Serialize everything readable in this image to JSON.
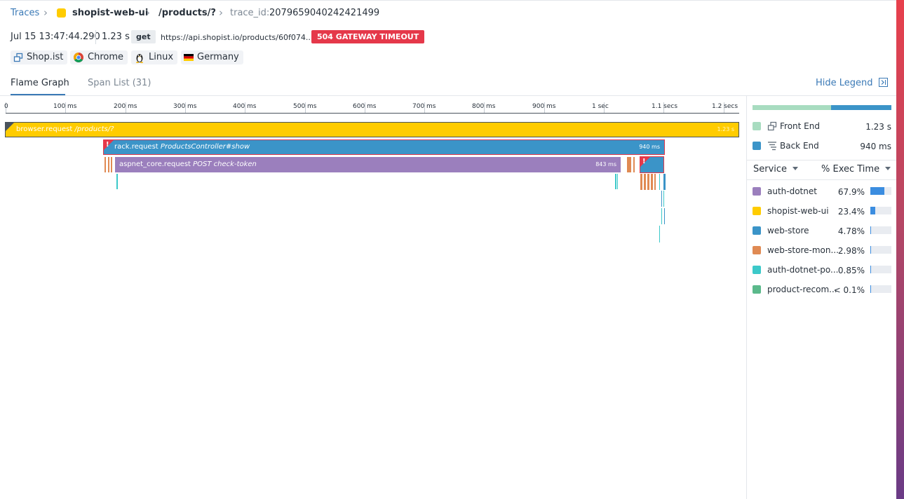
{
  "breadcrumb": {
    "root": "Traces",
    "service": "shopist-web-ui",
    "resource": "/products/?",
    "trace_id_label": "trace_id:",
    "trace_id": "2079659040242421499"
  },
  "meta": {
    "timestamp": "Jul 15 13:47:44.290",
    "duration": "1.23 s",
    "method": "get",
    "url": "https://api.shopist.io/products/60f074...",
    "status": "504 GATEWAY TIMEOUT"
  },
  "tags": [
    {
      "icon": "app-window-icon",
      "label": "Shop.ist"
    },
    {
      "icon": "chrome-icon",
      "label": "Chrome"
    },
    {
      "icon": "linux-icon",
      "label": "Linux"
    },
    {
      "icon": "germany-flag-icon",
      "label": "Germany"
    }
  ],
  "tabs": {
    "flame_graph": "Flame Graph",
    "span_list": "Span List (31)",
    "hide_legend": "Hide Legend"
  },
  "timeline": {
    "ticks": [
      "0",
      "100 ms",
      "200 ms",
      "300 ms",
      "400 ms",
      "500 ms",
      "600 ms",
      "700 ms",
      "800 ms",
      "900 ms",
      "1 sec",
      "1.1 secs",
      "1.2 secs"
    ]
  },
  "spans": [
    {
      "name": "browser.request",
      "resource": "/products/?",
      "duration": "1.23 s",
      "color": "#ffcc00",
      "error": false
    },
    {
      "name": "rack.request",
      "resource": "ProductsController#show",
      "duration": "940 ms",
      "color": "#3b94c8",
      "error": true
    },
    {
      "name": "aspnet_core.request",
      "resource": "POST check-token",
      "duration": "843 ms",
      "color": "#9b7fbd",
      "error": false
    }
  ],
  "legend": {
    "frontend": {
      "label": "Front End",
      "value": "1.23 s",
      "color": "#a8dcc0"
    },
    "backend": {
      "label": "Back End",
      "value": "940 ms",
      "color": "#3b94c8"
    },
    "group_by": "Service",
    "metric": "% Exec Time",
    "services": [
      {
        "name": "auth-dotnet",
        "pct": "67.9%",
        "fraction": 0.679,
        "color": "#9b7fbd"
      },
      {
        "name": "shopist-web-ui",
        "pct": "23.4%",
        "fraction": 0.234,
        "color": "#ffcc00"
      },
      {
        "name": "web-store",
        "pct": "4.78%",
        "fraction": 0.0478,
        "color": "#3b94c8"
      },
      {
        "name": "web-store-mon...",
        "pct": "2.98%",
        "fraction": 0.0298,
        "color": "#e08a53"
      },
      {
        "name": "auth-dotnet-po...",
        "pct": "0.85%",
        "fraction": 0.0085,
        "color": "#3cc9c9"
      },
      {
        "name": "product-recom...",
        "pct": "< 0.1%",
        "fraction": 0.001,
        "color": "#5bb98b"
      }
    ]
  }
}
